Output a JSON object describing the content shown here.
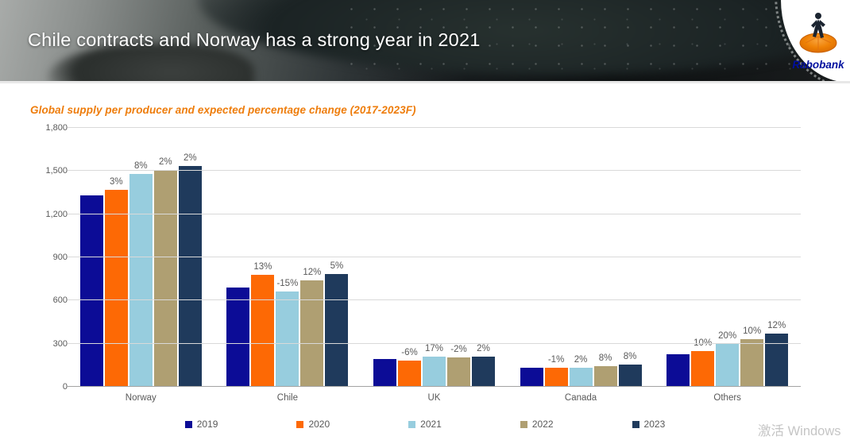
{
  "header": {
    "title": "Chile contracts and Norway has a strong year in 2021",
    "logo": {
      "brand": "Rabobank"
    }
  },
  "chart_data": {
    "type": "bar",
    "title": "Global supply per producer and expected percentage change (2017-2023F)",
    "categories": [
      "Norway",
      "Chile",
      "UK",
      "Canada",
      "Others"
    ],
    "series": [
      {
        "name": "2019",
        "color": "#0c0c96",
        "values": [
          1330,
          690,
          192,
          132,
          224
        ],
        "labels": [
          "",
          "",
          "",
          "",
          ""
        ]
      },
      {
        "name": "2020",
        "color": "#fd6905",
        "values": [
          1370,
          778,
          180,
          130,
          248
        ],
        "labels": [
          "3%",
          "13%",
          "-6%",
          "-1%",
          "10%"
        ]
      },
      {
        "name": "2021",
        "color": "#97cdde",
        "values": [
          1478,
          662,
          211,
          133,
          300
        ],
        "labels": [
          "8%",
          "-15%",
          "17%",
          "2%",
          "20%"
        ]
      },
      {
        "name": "2022",
        "color": "#af9f72",
        "values": [
          1505,
          741,
          206,
          144,
          330
        ],
        "labels": [
          "2%",
          "12%",
          "-2%",
          "8%",
          "10%"
        ]
      },
      {
        "name": "2023",
        "color": "#1f3a5c",
        "values": [
          1535,
          782,
          210,
          156,
          368
        ],
        "labels": [
          "2%",
          "5%",
          "2%",
          "8%",
          "12%"
        ]
      }
    ],
    "ylim": [
      0,
      1800
    ],
    "y_ticks": [
      0,
      300,
      600,
      900,
      1200,
      1500,
      1800
    ],
    "y_tick_labels": [
      "0",
      "300",
      "600",
      "900",
      "1,200",
      "1,500",
      "1,800"
    ],
    "grid": true,
    "legend_position": "bottom"
  },
  "watermark": "激活 Windows"
}
